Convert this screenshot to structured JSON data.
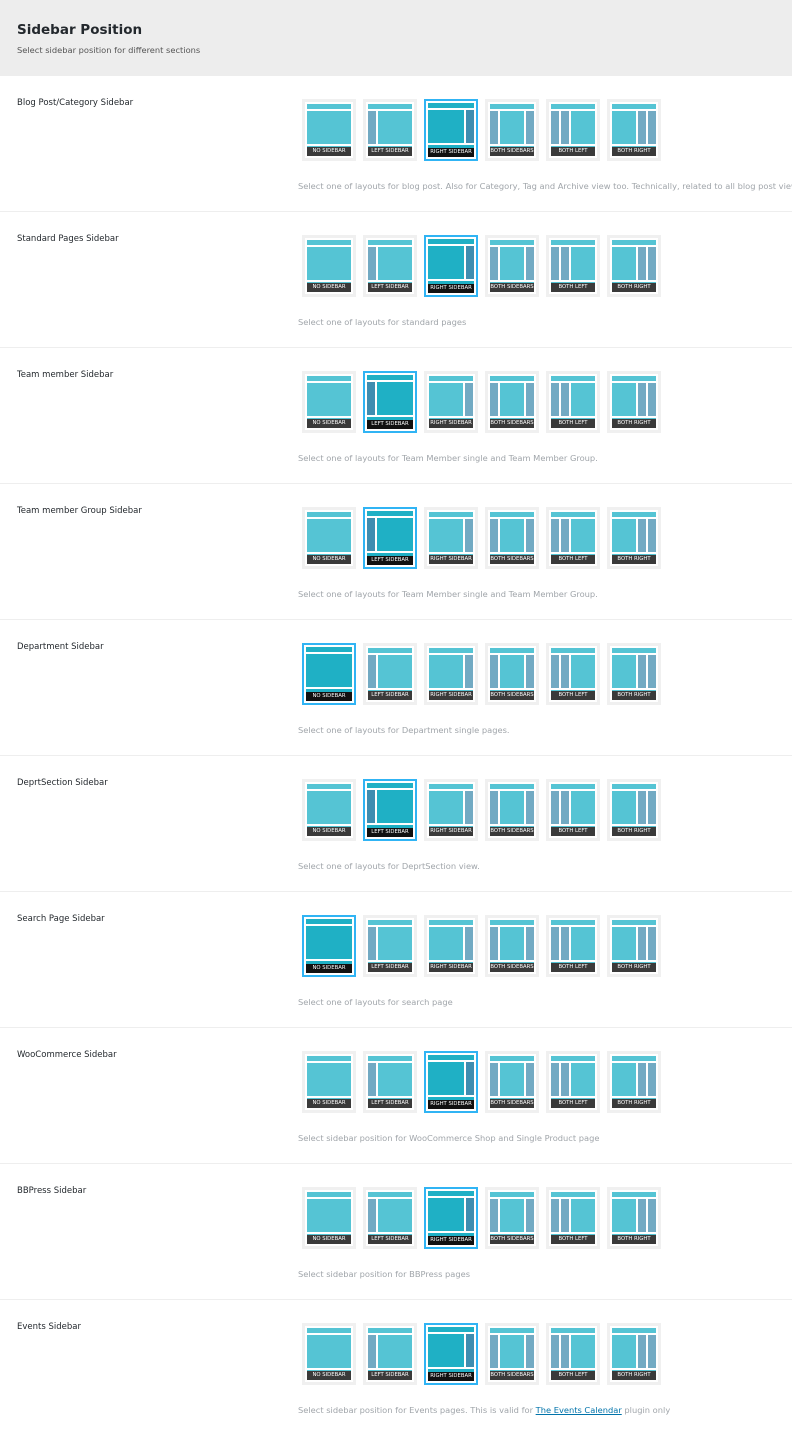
{
  "header": {
    "title": "Sidebar Position",
    "subtitle": "Select sidebar position for different sections"
  },
  "layouts": [
    {
      "id": "none",
      "label": "NO SIDEBAR"
    },
    {
      "id": "left",
      "label": "LEFT SIDEBAR"
    },
    {
      "id": "right",
      "label": "RIGHT SIDEBAR"
    },
    {
      "id": "both",
      "label": "BOTH SIDEBARS"
    },
    {
      "id": "both-left",
      "label": "BOTH LEFT"
    },
    {
      "id": "both-right",
      "label": "BOTH RIGHT"
    }
  ],
  "colors": {
    "main": "#55c4d4",
    "sidebar": "#72aac3",
    "main_selected": "#1fb0c5",
    "sidebar_selected": "#3f8db0",
    "selected_border": "#30b4f4"
  },
  "sections": [
    {
      "label": "Blog Post/Category Sidebar",
      "selected": "right",
      "desc": "Select one of layouts for blog post. Also for Category, Tag and Archive view too. Technically, related to all blog post view."
    },
    {
      "label": "Standard Pages Sidebar",
      "selected": "right",
      "desc": "Select one of layouts for standard pages"
    },
    {
      "label": "Team member Sidebar",
      "selected": "left",
      "desc": "Select one of layouts for Team Member single and Team Member Group."
    },
    {
      "label": "Team member Group Sidebar",
      "selected": "left",
      "desc": "Select one of layouts for Team Member single and Team Member Group."
    },
    {
      "label": "Department Sidebar",
      "selected": "none",
      "desc": "Select one of layouts for Department single pages."
    },
    {
      "label": "DeprtSection Sidebar",
      "selected": "left",
      "desc": "Select one of layouts for DeprtSection view."
    },
    {
      "label": "Search Page Sidebar",
      "selected": "none",
      "desc": "Select one of layouts for search page"
    },
    {
      "label": "WooCommerce Sidebar",
      "selected": "right",
      "desc": "Select sidebar position for WooCommerce Shop and Single Product page"
    },
    {
      "label": "BBPress Sidebar",
      "selected": "right",
      "desc": "Select sidebar position for BBPress pages"
    },
    {
      "label": "Events Sidebar",
      "selected": "right",
      "desc": "Select sidebar position for Events pages. This is valid for ",
      "desc_link": "The Events Calendar",
      "desc_after": " plugin only"
    }
  ]
}
